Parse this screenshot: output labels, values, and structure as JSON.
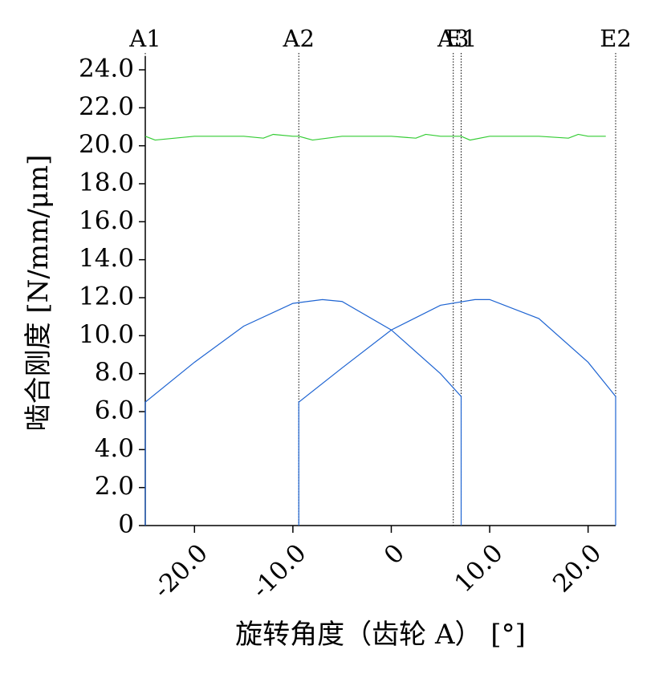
{
  "chart_data": {
    "type": "line",
    "xlabel": "旋转角度（齿轮 A） [°]",
    "ylabel": "啮合刚度 [N/mm/μm]",
    "xlim": [
      -25,
      22.8
    ],
    "ylim": [
      0,
      24
    ],
    "xticks": [
      {
        "value": -20,
        "label": "-20.0"
      },
      {
        "value": -10,
        "label": "-10.0"
      },
      0,
      {
        "value": 10,
        "label": "10.0"
      },
      {
        "value": 20,
        "label": "20.0"
      }
    ],
    "yticks": [
      0,
      {
        "value": 2,
        "label": "2.0"
      },
      {
        "value": 4,
        "label": "4.0"
      },
      {
        "value": 6,
        "label": "6.0"
      },
      {
        "value": 8,
        "label": "8.0"
      },
      {
        "value": 10,
        "label": "10.0"
      },
      {
        "value": 12,
        "label": "12.0"
      },
      {
        "value": 14,
        "label": "14.0"
      },
      {
        "value": 16,
        "label": "16.0"
      },
      {
        "value": 18,
        "label": "18.0"
      },
      {
        "value": 20,
        "label": "20.0"
      },
      {
        "value": 22,
        "label": "22.0"
      },
      {
        "value": 24,
        "label": "24.0"
      }
    ],
    "markers": [
      {
        "label": "A1",
        "x": -25
      },
      {
        "label": "A2",
        "x": -9.4
      },
      {
        "label": "A3",
        "x": 6.3
      },
      {
        "label": "E1",
        "x": 7.1
      },
      {
        "label": "E2",
        "x": 22.8
      }
    ],
    "series": [
      {
        "color": "#1e64d2",
        "x": [
          -25,
          -25,
          -20,
          -15,
          -10,
          -7,
          -5,
          0,
          5,
          7.1,
          7.1
        ],
        "values": [
          0,
          6.5,
          8.6,
          10.5,
          11.7,
          11.9,
          11.8,
          10.3,
          8.0,
          6.8,
          0
        ]
      },
      {
        "color": "#1e64d2",
        "x": [
          -9.4,
          -9.4,
          -5,
          0,
          5,
          8.5,
          10,
          15,
          20,
          22.8,
          22.8
        ],
        "values": [
          0,
          6.5,
          8.3,
          10.3,
          11.6,
          11.9,
          11.9,
          10.9,
          8.6,
          6.8,
          0
        ]
      },
      {
        "color": "#33cc33",
        "x": [
          -25,
          -24,
          -20,
          -15,
          -13,
          -12,
          -10,
          -9.4,
          -8,
          -5,
          0,
          2.5,
          3.5,
          5,
          6.5,
          7.1,
          8,
          10,
          15,
          18,
          19,
          20,
          21.8
        ],
        "values": [
          20.5,
          20.3,
          20.5,
          20.5,
          20.4,
          20.6,
          20.5,
          20.5,
          20.3,
          20.5,
          20.5,
          20.4,
          20.6,
          20.5,
          20.5,
          20.5,
          20.3,
          20.5,
          20.5,
          20.4,
          20.6,
          20.5,
          20.5
        ]
      }
    ]
  }
}
